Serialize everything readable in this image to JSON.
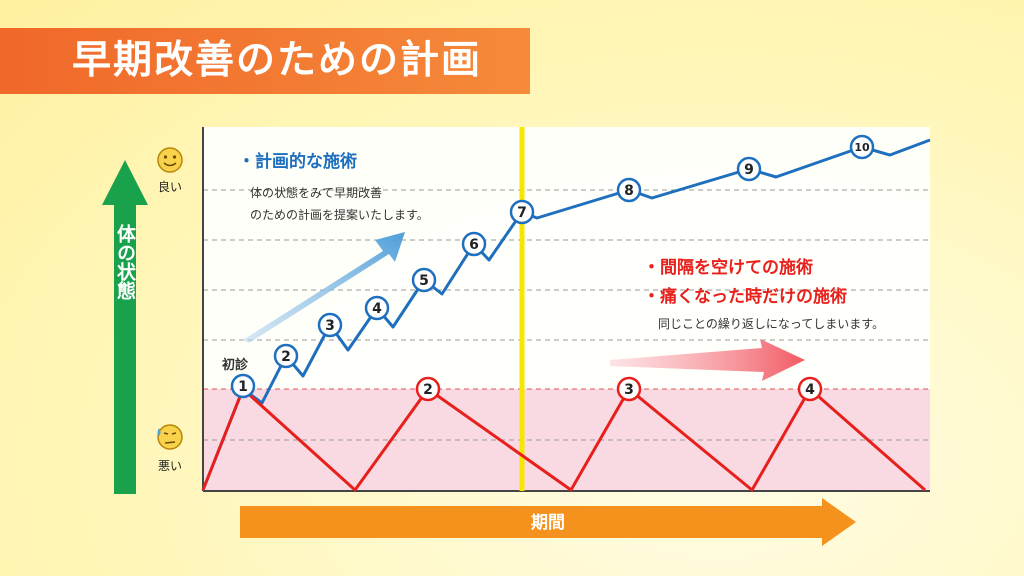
{
  "title": "早期改善のための計画",
  "y_axis": {
    "label": "体の状態",
    "good": "良い",
    "bad": "悪い"
  },
  "x_axis": {
    "label": "期間"
  },
  "first_visit_label": "初診",
  "plan": {
    "heading": "・計画的な施術",
    "description_lines": [
      "体の状態をみて早期改善",
      "のための計画を提案いたします。"
    ]
  },
  "adhoc": {
    "headings": [
      "・間隔を空けての施術",
      "・痛くなった時だけの施術"
    ],
    "description": "同じことの繰り返しになってしまいます。"
  },
  "chart_data": {
    "type": "line",
    "xlabel": "期間",
    "ylabel": "体の状態",
    "series": [
      {
        "color": "#1f6fbf",
        "markers": [
          "1",
          "2",
          "3",
          "4",
          "5",
          "6",
          "7",
          "8",
          "9",
          "10"
        ]
      },
      {
        "color": "#e8201c",
        "markers": [
          "1",
          "2",
          "3",
          "4"
        ]
      }
    ],
    "colors": {
      "plan": "#1f6fbf",
      "adhoc": "#e8201c",
      "divider": "#f7e600",
      "bad_zone": "#f9d9e2",
      "good_arrow": "#1aa14b",
      "period_arrow": "#f5921e"
    }
  }
}
